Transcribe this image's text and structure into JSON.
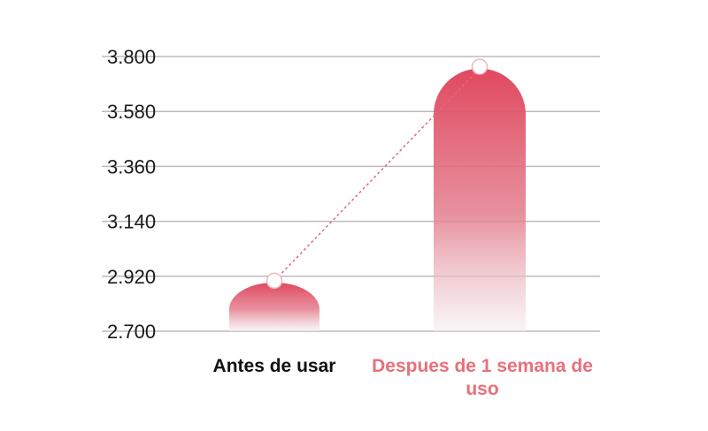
{
  "chart_data": {
    "type": "bar",
    "categories": [
      "Antes de usar",
      "Despues de 1 semana de uso"
    ],
    "values": [
      2.895,
      3.752
    ],
    "ylim": [
      2.7,
      3.8
    ],
    "yticks": [
      "2.700",
      "2.920",
      "3.140",
      "3.360",
      "3.580",
      "3.800"
    ],
    "ytick_values": [
      2.7,
      2.92,
      3.14,
      3.36,
      3.58,
      3.8
    ],
    "grid": true,
    "connector_line": "dashed",
    "colors": {
      "bar": "#e0485f",
      "bar_fade": "#f4eef0",
      "grid": "#bbbbbb",
      "connector": "#e4697a",
      "label_before": "#111111",
      "label_after": "#e8707a"
    }
  }
}
